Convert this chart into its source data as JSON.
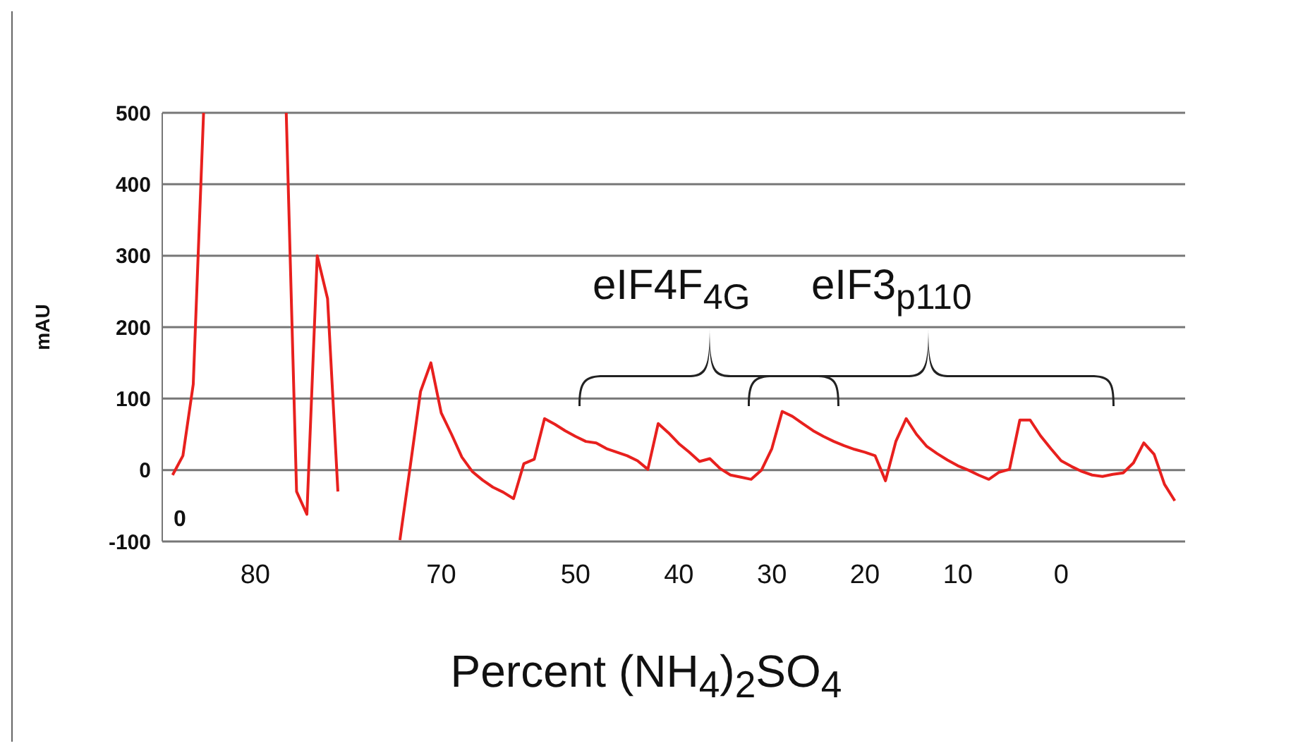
{
  "chart_data": {
    "type": "line",
    "xlabel": "Percent (NH$_{4}$)$_{2}$SO$_{4}$",
    "ylabel": "mAU",
    "annotations": [
      "0",
      "eIF4F$_{4G}$",
      "eIF3$_{p110}$"
    ],
    "categories": [
      null,
      null,
      null,
      null,
      null,
      null,
      null,
      null,
      null,
      "80",
      null,
      null,
      null,
      null,
      null,
      null,
      null,
      null,
      null,
      null,
      null,
      null,
      null,
      null,
      null,
      null,
      null,
      "70",
      null,
      null,
      null,
      null,
      null,
      null,
      null,
      null,
      null,
      null,
      null,
      null,
      "50",
      null,
      null,
      null,
      null,
      null,
      null,
      null,
      null,
      null,
      "40",
      null,
      null,
      null,
      null,
      null,
      null,
      null,
      null,
      "30",
      null,
      null,
      null,
      null,
      null,
      null,
      null,
      null,
      "20",
      null,
      null,
      null,
      null,
      null,
      null,
      null,
      null,
      "10",
      null,
      null,
      null,
      null,
      null,
      null,
      null,
      null,
      null,
      "0",
      null,
      null,
      null,
      null,
      null,
      null,
      null,
      null,
      null,
      null,
      null,
      null
    ],
    "series": [
      {
        "color": "#e8201e",
        "values": [
          null,
          -7,
          20,
          120,
          500,
          null,
          null,
          null,
          null,
          null,
          null,
          null,
          500,
          -30,
          -62,
          300,
          240,
          -30,
          null,
          null,
          null,
          null,
          null,
          -98,
          5,
          110,
          150,
          80,
          50,
          18,
          -2,
          -14,
          -24,
          -31,
          -40,
          9,
          15,
          72,
          64,
          55,
          47,
          40,
          38,
          30,
          25,
          20,
          13,
          1,
          65,
          52,
          37,
          25,
          12,
          16,
          2,
          -7,
          -10,
          -13,
          0,
          30,
          82,
          75,
          65,
          55,
          47,
          40,
          34,
          29,
          25,
          20,
          -15,
          40,
          72,
          50,
          33,
          23,
          14,
          6,
          0,
          -7,
          -13,
          -3,
          1,
          70,
          70,
          48,
          30,
          13,
          5,
          -2,
          -7,
          -9,
          -6,
          -4,
          10,
          38,
          22,
          -20,
          -43,
          null
        ]
      }
    ],
    "ylim": [
      -100,
      500
    ],
    "yticks": [
      -100,
      0,
      100,
      200,
      300,
      400,
      500
    ],
    "grid": "y",
    "legend": false,
    "marker": "none",
    "line_style": "solid"
  }
}
